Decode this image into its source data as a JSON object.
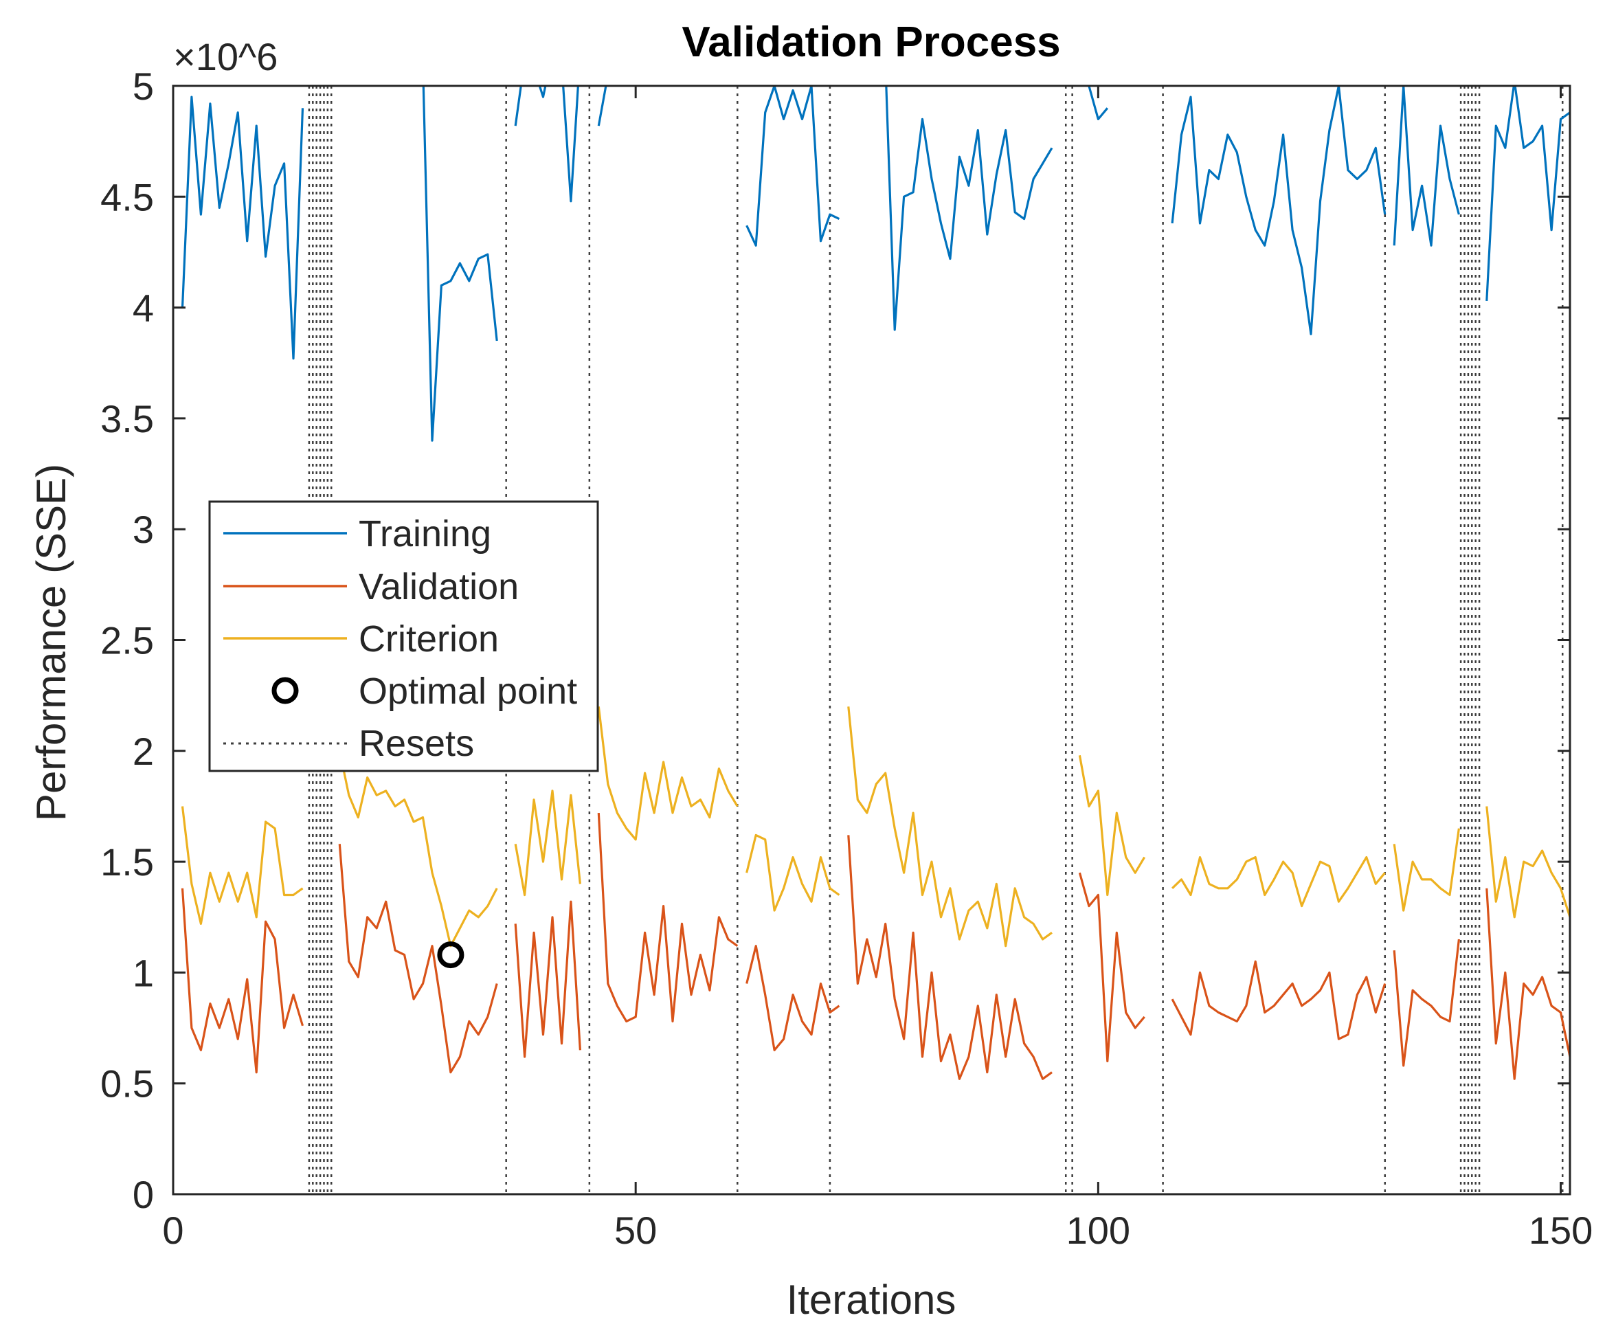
{
  "chart_data": {
    "type": "line",
    "title": "Validation Process",
    "xlabel": "Iterations",
    "ylabel": "Performance (SSE)",
    "y_exponent": "×10^6",
    "xlim": [
      0,
      151
    ],
    "ylim": [
      0,
      5000000
    ],
    "x_ticks": [
      0,
      50,
      100,
      150
    ],
    "y_ticks": [
      0,
      0.5,
      1,
      1.5,
      2,
      2.5,
      3,
      3.5,
      4,
      4.5,
      5
    ],
    "y_tick_scale": 1000000,
    "legend_position": "center-left",
    "series": [
      {
        "name": "Training",
        "color": "#0072BD",
        "segments": [
          {
            "x": [
              1,
              2,
              3,
              4,
              5,
              6,
              7,
              8,
              9,
              10,
              11,
              12,
              13,
              14
            ],
            "y": [
              4.0,
              4.95,
              4.42,
              4.92,
              4.45,
              4.65,
              4.88,
              4.3,
              4.82,
              4.23,
              4.55,
              4.65,
              3.77,
              4.9
            ]
          },
          {
            "x": [
              27,
              28,
              29,
              30,
              31,
              32,
              33,
              34,
              35
            ],
            "y": [
              5.1,
              3.4,
              4.1,
              4.12,
              4.2,
              4.12,
              4.22,
              4.24,
              3.85
            ]
          },
          {
            "x": [
              37,
              38,
              39,
              40,
              41,
              42,
              43,
              44
            ],
            "y": [
              4.82,
              5.12,
              5.08,
              4.95,
              5.15,
              5.1,
              4.48,
              5.15
            ]
          },
          {
            "x": [
              46,
              47
            ],
            "y": [
              4.82,
              5.05
            ]
          },
          {
            "x": [
              62,
              63,
              64,
              65,
              66,
              67,
              68,
              69,
              70,
              71,
              72
            ],
            "y": [
              4.37,
              4.28,
              4.88,
              5.0,
              4.85,
              4.98,
              4.85,
              5.0,
              4.3,
              4.42,
              4.4
            ]
          },
          {
            "x": [
              77,
              78,
              79,
              80,
              81,
              82,
              83,
              84,
              85,
              86,
              87,
              88,
              89,
              90,
              91,
              92,
              93,
              94,
              95
            ],
            "y": [
              5.1,
              3.9,
              4.5,
              4.52,
              4.85,
              4.58,
              4.38,
              4.22,
              4.68,
              4.55,
              4.8,
              4.33,
              4.6,
              4.8,
              4.43,
              4.4,
              4.58,
              4.65,
              4.72
            ]
          },
          {
            "x": [
              99,
              100,
              101
            ],
            "y": [
              5.0,
              4.85,
              4.9
            ]
          },
          {
            "x": [
              108,
              109,
              110,
              111,
              112,
              113,
              114,
              115,
              116,
              117,
              118,
              119,
              120,
              121,
              122,
              123,
              124,
              125,
              126,
              127,
              128,
              129,
              130,
              131
            ],
            "y": [
              4.38,
              4.78,
              4.95,
              4.38,
              4.62,
              4.58,
              4.78,
              4.7,
              4.5,
              4.35,
              4.28,
              4.48,
              4.78,
              4.35,
              4.18,
              3.88,
              4.48,
              4.8,
              5.0,
              4.62,
              4.58,
              4.62,
              4.72,
              4.42
            ]
          },
          {
            "x": [
              132,
              133,
              134,
              135,
              136,
              137,
              138,
              139
            ],
            "y": [
              4.28,
              5.0,
              4.35,
              4.55,
              4.28,
              4.82,
              4.58,
              4.42
            ]
          },
          {
            "x": [
              142,
              143,
              144,
              145,
              146,
              147,
              148,
              149,
              150,
              151
            ],
            "y": [
              4.03,
              4.82,
              4.72,
              5.02,
              4.72,
              4.75,
              4.82,
              4.35,
              4.85,
              4.88
            ]
          }
        ]
      },
      {
        "name": "Validation",
        "color": "#D95319",
        "segments": [
          {
            "x": [
              1,
              2,
              3,
              4,
              5,
              6,
              7,
              8,
              9,
              10,
              11,
              12,
              13,
              14
            ],
            "y": [
              1.38,
              0.75,
              0.65,
              0.86,
              0.75,
              0.88,
              0.7,
              0.97,
              0.55,
              1.23,
              1.15,
              0.75,
              0.9,
              0.76
            ]
          },
          {
            "x": [
              18,
              19,
              20,
              21,
              22,
              23,
              24,
              25,
              26,
              27,
              28,
              29,
              30,
              31,
              32,
              33,
              34,
              35
            ],
            "y": [
              1.58,
              1.05,
              0.98,
              1.25,
              1.2,
              1.32,
              1.1,
              1.08,
              0.88,
              0.95,
              1.12,
              0.85,
              0.55,
              0.62,
              0.78,
              0.72,
              0.8,
              0.95
            ]
          },
          {
            "x": [
              37,
              38,
              39,
              40,
              41,
              42,
              43,
              44
            ],
            "y": [
              1.22,
              0.62,
              1.18,
              0.72,
              1.25,
              0.68,
              1.32,
              0.65
            ]
          },
          {
            "x": [
              46,
              47,
              48,
              49,
              50,
              51,
              52,
              53,
              54,
              55,
              56,
              57,
              58,
              59,
              60,
              61
            ],
            "y": [
              1.72,
              0.95,
              0.85,
              0.78,
              0.8,
              1.18,
              0.9,
              1.3,
              0.78,
              1.22,
              0.9,
              1.08,
              0.92,
              1.25,
              1.15,
              1.12
            ]
          },
          {
            "x": [
              62,
              63,
              64,
              65,
              66,
              67,
              68,
              69,
              70,
              71,
              72
            ],
            "y": [
              0.95,
              1.12,
              0.9,
              0.65,
              0.7,
              0.9,
              0.78,
              0.72,
              0.95,
              0.82,
              0.85
            ]
          },
          {
            "x": [
              73,
              74,
              75,
              76,
              77,
              78,
              79,
              80,
              81,
              82,
              83,
              84,
              85,
              86,
              87,
              88,
              89,
              90,
              91,
              92,
              93,
              94,
              95
            ],
            "y": [
              1.62,
              0.95,
              1.15,
              0.98,
              1.22,
              0.88,
              0.7,
              1.18,
              0.62,
              1.0,
              0.6,
              0.72,
              0.52,
              0.62,
              0.85,
              0.55,
              0.9,
              0.62,
              0.88,
              0.68,
              0.62,
              0.52,
              0.55
            ]
          },
          {
            "x": [
              98,
              99,
              100,
              101,
              102,
              103,
              104,
              105
            ],
            "y": [
              1.45,
              1.3,
              1.35,
              0.6,
              1.18,
              0.82,
              0.75,
              0.8
            ]
          },
          {
            "x": [
              108,
              109,
              110,
              111,
              112,
              113,
              114,
              115,
              116,
              117,
              118,
              119,
              120,
              121,
              122,
              123,
              124,
              125,
              126,
              127,
              128,
              129,
              130,
              131
            ],
            "y": [
              0.88,
              0.8,
              0.72,
              1.0,
              0.85,
              0.82,
              0.8,
              0.78,
              0.85,
              1.05,
              0.82,
              0.85,
              0.9,
              0.95,
              0.85,
              0.88,
              0.92,
              1.0,
              0.7,
              0.72,
              0.9,
              0.98,
              0.82,
              0.95
            ]
          },
          {
            "x": [
              132,
              133,
              134,
              135,
              136,
              137,
              138,
              139
            ],
            "y": [
              1.1,
              0.58,
              0.92,
              0.88,
              0.85,
              0.8,
              0.78,
              1.15
            ]
          },
          {
            "x": [
              142,
              143,
              144,
              145,
              146,
              147,
              148,
              149,
              150,
              151
            ],
            "y": [
              1.38,
              0.68,
              1.0,
              0.52,
              0.95,
              0.9,
              0.98,
              0.85,
              0.82,
              0.62
            ]
          }
        ]
      },
      {
        "name": "Criterion",
        "color": "#EDB120",
        "segments": [
          {
            "x": [
              1,
              2,
              3,
              4,
              5,
              6,
              7,
              8,
              9,
              10,
              11,
              12,
              13,
              14
            ],
            "y": [
              1.75,
              1.4,
              1.22,
              1.45,
              1.32,
              1.45,
              1.32,
              1.45,
              1.25,
              1.68,
              1.65,
              1.35,
              1.35,
              1.38
            ]
          },
          {
            "x": [
              18,
              19,
              20,
              21,
              22,
              23,
              24,
              25,
              26,
              27,
              28,
              29,
              30,
              31,
              32,
              33,
              34,
              35
            ],
            "y": [
              2.0,
              1.8,
              1.7,
              1.88,
              1.8,
              1.82,
              1.75,
              1.78,
              1.68,
              1.7,
              1.45,
              1.3,
              1.12,
              1.2,
              1.28,
              1.25,
              1.3,
              1.38
            ]
          },
          {
            "x": [
              37,
              38,
              39,
              40,
              41,
              42,
              43,
              44
            ],
            "y": [
              1.58,
              1.35,
              1.78,
              1.5,
              1.82,
              1.42,
              1.8,
              1.4
            ]
          },
          {
            "x": [
              46,
              47,
              48,
              49,
              50,
              51,
              52,
              53,
              54,
              55,
              56,
              57,
              58,
              59,
              60,
              61
            ],
            "y": [
              2.2,
              1.85,
              1.72,
              1.65,
              1.6,
              1.9,
              1.72,
              1.95,
              1.72,
              1.88,
              1.75,
              1.78,
              1.7,
              1.92,
              1.82,
              1.75
            ]
          },
          {
            "x": [
              62,
              63,
              64,
              65,
              66,
              67,
              68,
              69,
              70,
              71,
              72
            ],
            "y": [
              1.45,
              1.62,
              1.6,
              1.28,
              1.38,
              1.52,
              1.4,
              1.32,
              1.52,
              1.38,
              1.35
            ]
          },
          {
            "x": [
              73,
              74,
              75,
              76,
              77,
              78,
              79,
              80,
              81,
              82,
              83,
              84,
              85,
              86,
              87,
              88,
              89,
              90,
              91,
              92,
              93,
              94,
              95
            ],
            "y": [
              2.2,
              1.78,
              1.72,
              1.85,
              1.9,
              1.65,
              1.45,
              1.72,
              1.35,
              1.5,
              1.25,
              1.38,
              1.15,
              1.28,
              1.32,
              1.2,
              1.4,
              1.12,
              1.38,
              1.25,
              1.22,
              1.15,
              1.18
            ]
          },
          {
            "x": [
              98,
              99,
              100,
              101,
              102,
              103,
              104,
              105
            ],
            "y": [
              1.98,
              1.75,
              1.82,
              1.35,
              1.72,
              1.52,
              1.45,
              1.52
            ]
          },
          {
            "x": [
              108,
              109,
              110,
              111,
              112,
              113,
              114,
              115,
              116,
              117,
              118,
              119,
              120,
              121,
              122,
              123,
              124,
              125,
              126,
              127,
              128,
              129,
              130,
              131
            ],
            "y": [
              1.38,
              1.42,
              1.35,
              1.52,
              1.4,
              1.38,
              1.38,
              1.42,
              1.5,
              1.52,
              1.35,
              1.42,
              1.5,
              1.45,
              1.3,
              1.4,
              1.5,
              1.48,
              1.32,
              1.38,
              1.45,
              1.52,
              1.4,
              1.45
            ]
          },
          {
            "x": [
              132,
              133,
              134,
              135,
              136,
              137,
              138,
              139
            ],
            "y": [
              1.58,
              1.28,
              1.5,
              1.42,
              1.42,
              1.38,
              1.35,
              1.65
            ]
          },
          {
            "x": [
              142,
              143,
              144,
              145,
              146,
              147,
              148,
              149,
              150,
              151
            ],
            "y": [
              1.75,
              1.32,
              1.52,
              1.25,
              1.5,
              1.48,
              1.55,
              1.45,
              1.38,
              1.25
            ]
          }
        ]
      }
    ],
    "optimal_point": {
      "name": "Optimal point",
      "x": 30,
      "y": 1.08
    },
    "resets": {
      "name": "Resets",
      "x": [
        14.7,
        15.1,
        15.5,
        15.9,
        16.3,
        16.7,
        17.1,
        36,
        45,
        61,
        71,
        96.5,
        97.2,
        107,
        131,
        139.2,
        139.6,
        140,
        140.4,
        140.8,
        141.2,
        150.2
      ]
    }
  }
}
